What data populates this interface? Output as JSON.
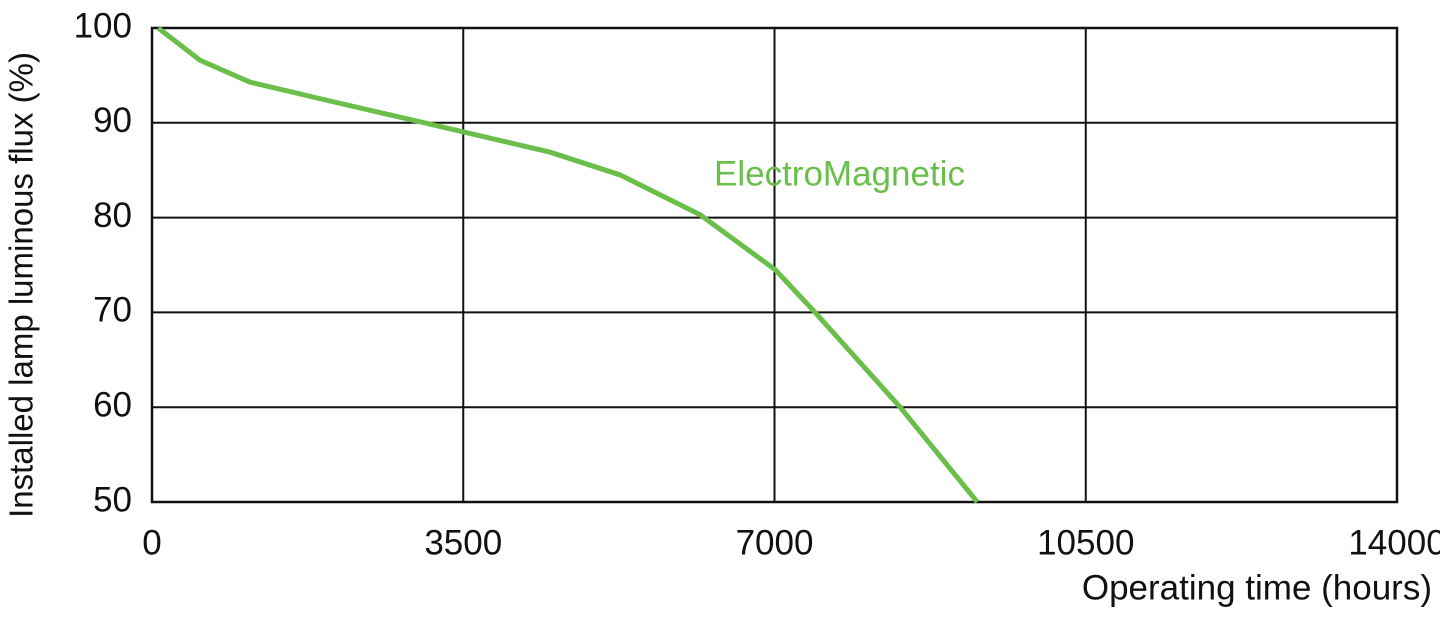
{
  "chart_data": {
    "type": "line",
    "x_label": "Operating time (hours)",
    "y_label": "Installed lamp luminous flux  (%)",
    "xlim": [
      0,
      14000
    ],
    "ylim": [
      50,
      100
    ],
    "xticks": [
      0,
      3500,
      7000,
      10500,
      14000
    ],
    "yticks": [
      50,
      60,
      70,
      80,
      90,
      100
    ],
    "grid": true,
    "series": [
      {
        "name": "ElectroMagnetic",
        "color": "#6abf4b",
        "x": [
          70,
          540,
          1100,
          2000,
          3015,
          4477,
          5264,
          6164,
          7008,
          7457,
          8413,
          9280
        ],
        "values": [
          100,
          96.6,
          94.3,
          92.3,
          90.1,
          86.9,
          84.5,
          80.3,
          74.5,
          70,
          60,
          50
        ]
      }
    ]
  }
}
